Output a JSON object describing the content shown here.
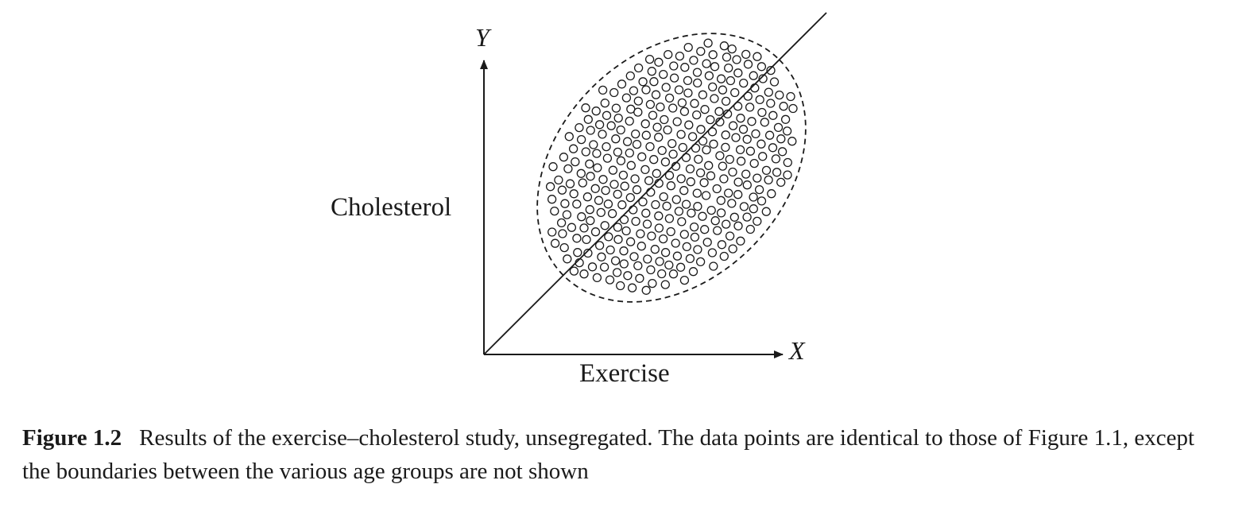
{
  "figure": {
    "y_axis_symbol": "Y",
    "x_axis_symbol": "X",
    "y_axis_label": "Cholesterol",
    "x_axis_label": "Exercise"
  },
  "caption": {
    "label": "Figure 1.2",
    "text": "Results of the exercise–cholesterol study, unsegregated. The data points are identical to those of Figure 1.1, except the boundaries between the various age groups are not shown"
  }
}
